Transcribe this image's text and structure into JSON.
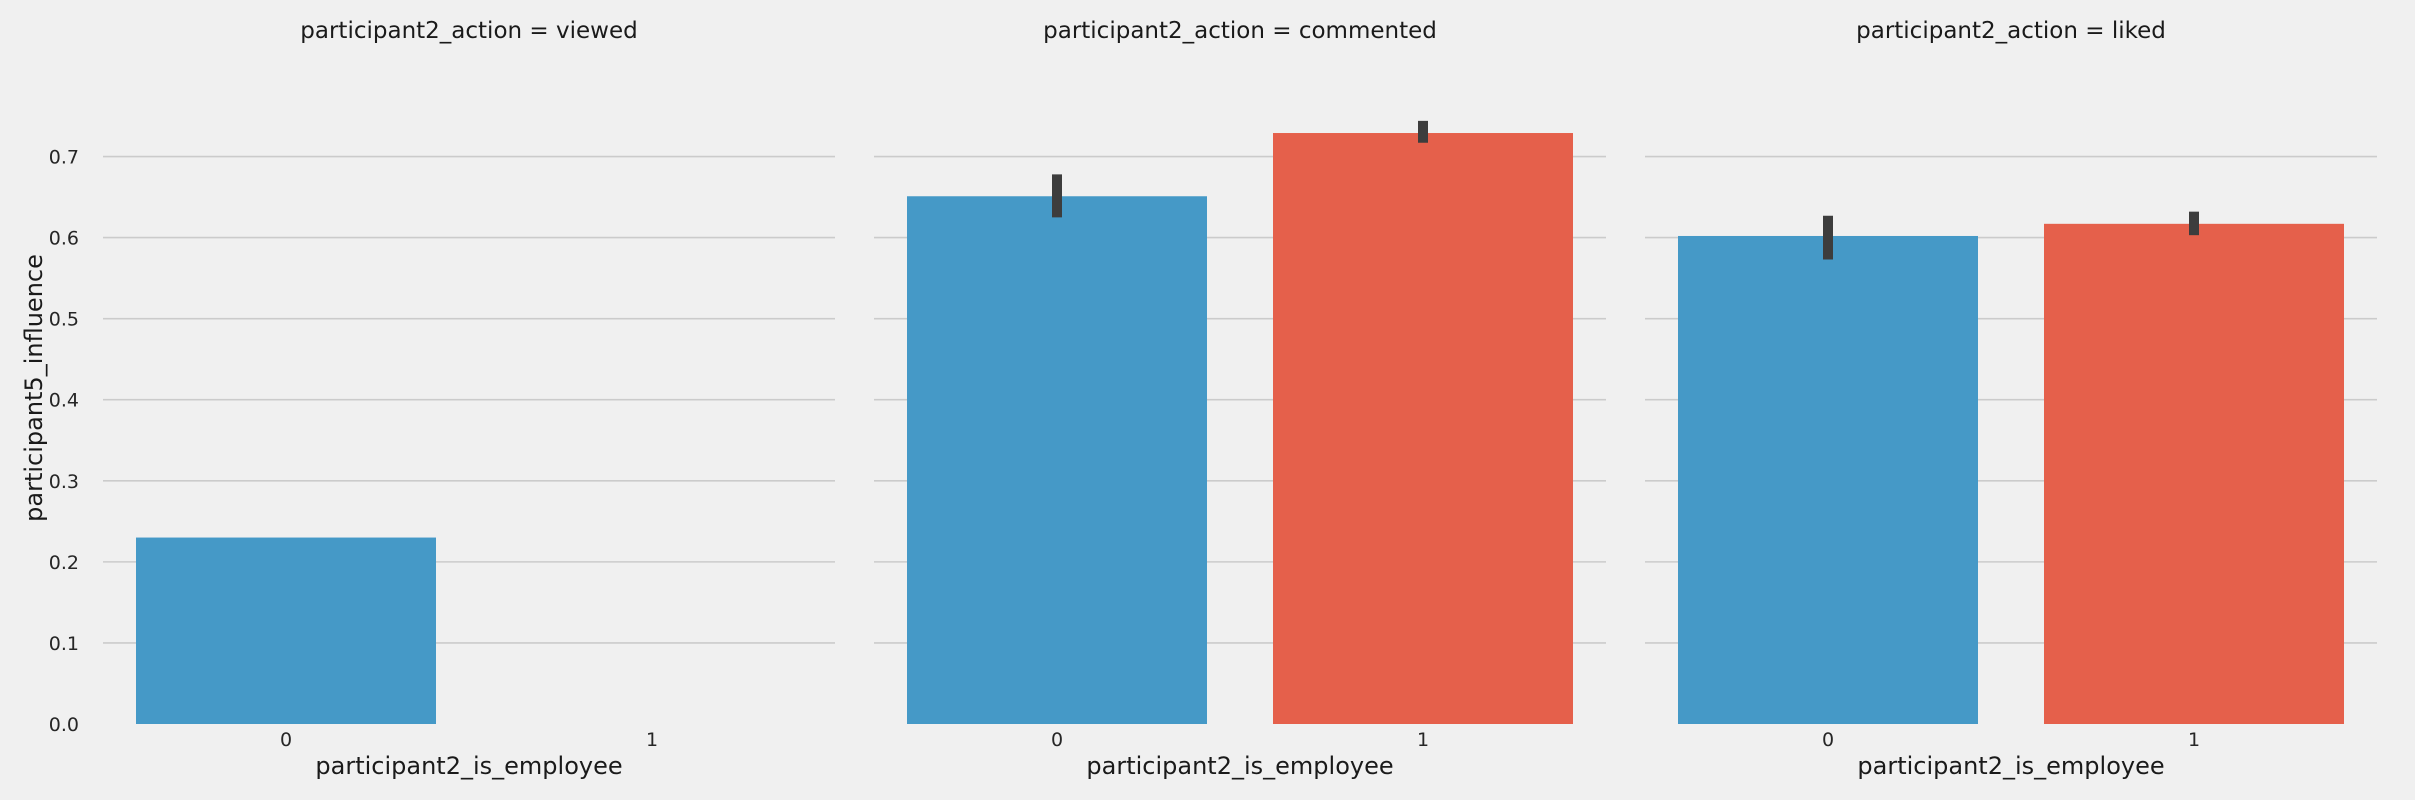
{
  "chart_data": {
    "type": "bar",
    "facet_variable": "participant2_action",
    "xlabel": "participant2_is_employee",
    "ylabel": "participant5_influence",
    "ylim": [
      0,
      0.75
    ],
    "yticks": [
      0.0,
      0.1,
      0.2,
      0.3,
      0.4,
      0.5,
      0.6,
      0.7
    ],
    "categories": [
      "0",
      "1"
    ],
    "colors": [
      "#4599c7",
      "#e5604b"
    ],
    "grid": true,
    "panels": [
      {
        "title": "participant2_action = viewed",
        "bars": [
          {
            "category": "0",
            "value": 0.23,
            "ci": null
          },
          {
            "category": "1",
            "value": null,
            "ci": null
          }
        ]
      },
      {
        "title": "participant2_action = commented",
        "bars": [
          {
            "category": "0",
            "value": 0.651,
            "ci": [
              0.625,
              0.678
            ]
          },
          {
            "category": "1",
            "value": 0.729,
            "ci": [
              0.717,
              0.744
            ]
          }
        ]
      },
      {
        "title": "participant2_action = liked",
        "bars": [
          {
            "category": "0",
            "value": 0.602,
            "ci": [
              0.573,
              0.627
            ]
          },
          {
            "category": "1",
            "value": 0.617,
            "ci": [
              0.603,
              0.632
            ]
          }
        ]
      }
    ]
  }
}
